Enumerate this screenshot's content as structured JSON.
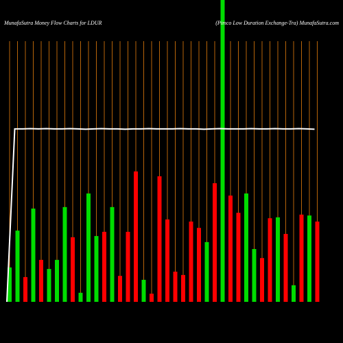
{
  "chart_data": {
    "type": "bar",
    "title": "MunafaSutra  Money Flow  Charts for LDUR",
    "subtitle": "(Pimco  Low  Duration  Exchange-Tra) MunafaSutra.com",
    "categories": [
      null,
      null,
      null,
      null,
      null,
      null,
      null,
      null,
      null,
      null,
      null,
      null,
      null,
      null,
      null,
      null,
      null,
      null,
      null,
      null,
      null,
      null,
      null,
      null,
      null,
      null,
      null,
      null,
      null,
      null,
      null,
      null,
      null,
      null,
      null,
      null,
      null,
      null,
      null,
      null
    ],
    "values": [
      11.4,
      23.6,
      8.2,
      30.9,
      13.9,
      10.9,
      13.9,
      31.4,
      21.4,
      3,
      35.9,
      21.8,
      23.2,
      31.4,
      8.6,
      23.2,
      43.2,
      7.3,
      2.7,
      41.6,
      27.3,
      10,
      8.9,
      26.6,
      24.5,
      19.8,
      39.3,
      100,
      35.2,
      29.5,
      35.9,
      17.5,
      14.5,
      27.7,
      28,
      22.5,
      5.5,
      28.9,
      28.6,
      26.6
    ],
    "colors": [
      "#00dd00",
      "#00dd00",
      "#ff0000",
      "#00dd00",
      "#ff0000",
      "#00dd00",
      "#00dd00",
      "#00dd00",
      "#ff0000",
      "#00dd00",
      "#00dd00",
      "#00dd00",
      "#ff0000",
      "#00dd00",
      "#ff0000",
      "#ff0000",
      "#ff0000",
      "#00dd00",
      "#ff0000",
      "#ff0000",
      "#ff0000",
      "#ff0000",
      "#ff0000",
      "#ff0000",
      "#ff0000",
      "#00dd00",
      "#ff0000",
      "#00dd00",
      "#ff0000",
      "#ff0000",
      "#00dd00",
      "#00dd00",
      "#ff0000",
      "#ff0000",
      "#00dd00",
      "#ff0000",
      "#00dd00",
      "#ff0000",
      "#00dd00",
      "#ff0000"
    ],
    "line": {
      "color": "#ffffff",
      "values": [
        0,
        57.3,
        57.3,
        57.4,
        57.3,
        57.4,
        57.3,
        57.3,
        57.4,
        57.3,
        57.2,
        57.3,
        57.4,
        57.3,
        57.3,
        57.2,
        57.3,
        57.3,
        57.4,
        57.3,
        57.3,
        57.3,
        57.4,
        57.3,
        57.3,
        57.2,
        57.3,
        57.4,
        57.3,
        57.3,
        57.3,
        57.4,
        57.3,
        57.3,
        57.4,
        57.3,
        57.3,
        57.4,
        57.3,
        57.2
      ]
    },
    "ylim": [
      0,
      100
    ],
    "grid_color": "#b8650a"
  }
}
